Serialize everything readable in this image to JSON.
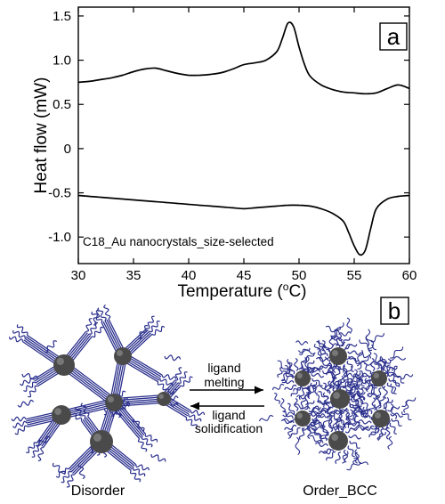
{
  "panel_a": {
    "label": "a",
    "annotation": "C18_Au nanocrystals_size-selected",
    "xlabel": "Temperature (",
    "xlabel_sup": "o",
    "xlabel_unit": "C)",
    "ylabel": "Heat flow (mW)",
    "chart_data": {
      "type": "line",
      "xlabel": "Temperature (°C)",
      "ylabel": "Heat flow (mW)",
      "xlim": [
        30,
        60
      ],
      "ylim": [
        -1.3,
        1.6
      ],
      "x_ticks": [
        "30",
        "35",
        "40",
        "45",
        "50",
        "55",
        "60"
      ],
      "y_ticks": [
        "-1.0",
        "-0.5",
        "0",
        "0.5",
        "1.0",
        "1.5"
      ],
      "grid": false,
      "series": [
        {
          "x": [
            30,
            31,
            32,
            33,
            34,
            35,
            36,
            37,
            38,
            39,
            40,
            41,
            42,
            43,
            44,
            45,
            46,
            47,
            48,
            48.5,
            49,
            49.5,
            50,
            50.5,
            51,
            52,
            53,
            54,
            55,
            56,
            57,
            58,
            59,
            60
          ],
          "y": [
            0.75,
            0.76,
            0.78,
            0.8,
            0.83,
            0.87,
            0.9,
            0.91,
            0.88,
            0.85,
            0.83,
            0.83,
            0.84,
            0.86,
            0.9,
            0.95,
            0.97,
            1.0,
            1.1,
            1.25,
            1.42,
            1.38,
            1.15,
            0.95,
            0.82,
            0.72,
            0.67,
            0.64,
            0.63,
            0.62,
            0.63,
            0.68,
            0.72,
            0.68
          ]
        },
        {
          "x": [
            30,
            31,
            32,
            33,
            34,
            35,
            36,
            37,
            38,
            39,
            40,
            41,
            42,
            43,
            44,
            45,
            46,
            47,
            48,
            49,
            50,
            51,
            52,
            53,
            54,
            54.5,
            55,
            55.5,
            56,
            56.5,
            57,
            58,
            59,
            60
          ],
          "y": [
            -0.53,
            -0.54,
            -0.55,
            -0.56,
            -0.57,
            -0.58,
            -0.59,
            -0.6,
            -0.61,
            -0.62,
            -0.63,
            -0.64,
            -0.65,
            -0.66,
            -0.67,
            -0.68,
            -0.67,
            -0.66,
            -0.65,
            -0.64,
            -0.64,
            -0.65,
            -0.68,
            -0.73,
            -0.82,
            -0.95,
            -1.1,
            -1.2,
            -1.15,
            -0.9,
            -0.68,
            -0.57,
            -0.54,
            -0.53
          ]
        }
      ]
    }
  },
  "panel_b": {
    "label": "b",
    "left_caption": "Disorder",
    "right_caption": "Order_BCC",
    "arrow_top_line1": "ligand",
    "arrow_top_line2": "melting",
    "arrow_bottom_line1": "ligand",
    "arrow_bottom_line2": "solidification",
    "colors": {
      "ligand": "#2a2f8c",
      "particle": "#4a4a4a"
    }
  }
}
